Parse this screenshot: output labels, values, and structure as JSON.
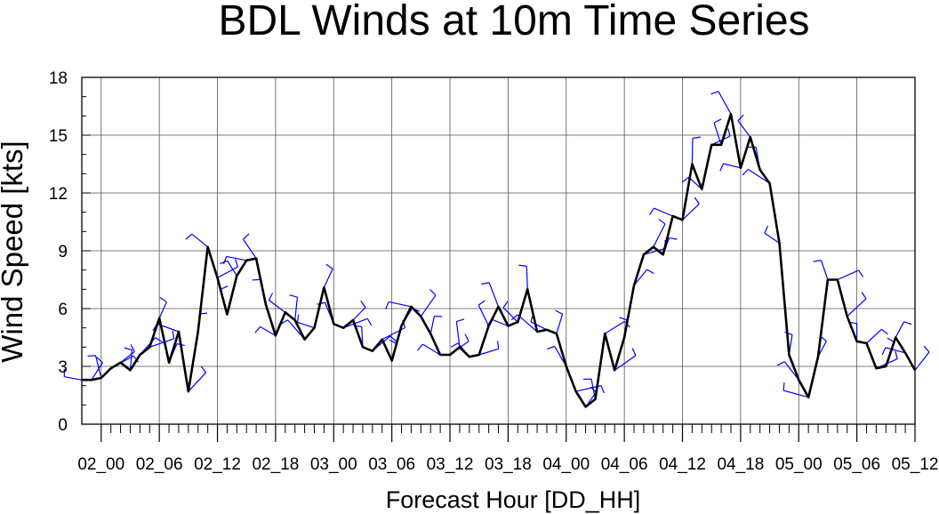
{
  "chart_data": {
    "type": "line",
    "title": "BDL Winds at 10m Time Series",
    "xlabel": "Forecast Hour [DD_HH]",
    "ylabel": "Wind Speed [kts]",
    "x_tick_labels": [
      "02_00",
      "02_06",
      "02_12",
      "02_18",
      "03_00",
      "03_06",
      "03_12",
      "03_18",
      "04_00",
      "04_06",
      "04_12",
      "04_18",
      "05_00",
      "05_06",
      "05_12"
    ],
    "x_tick_hours": [
      0,
      6,
      12,
      18,
      24,
      30,
      36,
      42,
      48,
      54,
      60,
      66,
      72,
      78,
      84
    ],
    "y_tick_labels": [
      "0",
      "3",
      "6",
      "9",
      "12",
      "15",
      "18"
    ],
    "ylim": [
      0,
      18
    ],
    "xlim": [
      -2,
      84
    ],
    "grid": true,
    "series": [
      {
        "name": "",
        "color": "#000000",
        "x": [
          -2,
          -1,
          0,
          1,
          2,
          3,
          4,
          5,
          6,
          7,
          8,
          9,
          10,
          11,
          12,
          13,
          14,
          15,
          16,
          17,
          18,
          19,
          20,
          21,
          22,
          23,
          24,
          25,
          26,
          27,
          28,
          29,
          30,
          31,
          32,
          33,
          34,
          35,
          36,
          37,
          38,
          39,
          40,
          41,
          42,
          43,
          44,
          45,
          46,
          47,
          48,
          49,
          50,
          51,
          52,
          53,
          54,
          55,
          56,
          57,
          58,
          59,
          60,
          61,
          62,
          63,
          64,
          65,
          66,
          67,
          68,
          69,
          70,
          71,
          72,
          73,
          74,
          75,
          76,
          77,
          78,
          79,
          80,
          81,
          82,
          83,
          84
        ],
        "values": [
          2.3,
          2.3,
          2.4,
          2.9,
          3.2,
          2.8,
          3.6,
          4.0,
          5.5,
          3.2,
          4.8,
          1.7,
          4.8,
          9.2,
          7.6,
          5.7,
          7.7,
          8.5,
          8.6,
          6.2,
          4.6,
          5.8,
          5.4,
          4.4,
          5.0,
          7.1,
          5.2,
          5.0,
          5.4,
          4.0,
          3.8,
          4.4,
          3.3,
          5.1,
          6.1,
          5.6,
          4.7,
          3.6,
          3.6,
          4.0,
          3.5,
          3.6,
          5.1,
          6.1,
          5.1,
          5.3,
          7.0,
          4.8,
          4.9,
          4.7,
          3.0,
          1.7,
          0.9,
          1.3,
          4.7,
          2.8,
          4.5,
          7.2,
          8.8,
          9.2,
          8.8,
          10.8,
          10.6,
          13.5,
          12.2,
          14.5,
          14.5,
          16.1,
          13.3,
          14.9,
          13.2,
          12.5,
          9.4,
          3.6,
          2.3,
          1.4,
          3.5,
          7.5,
          7.5,
          5.6,
          4.3,
          4.2,
          2.9,
          3.0,
          4.5,
          3.7,
          2.8
        ]
      }
    ],
    "wind_barbs": {
      "color": "#0000ff",
      "note": "barbs drawn at each hourly point, speeds from series values"
    }
  }
}
